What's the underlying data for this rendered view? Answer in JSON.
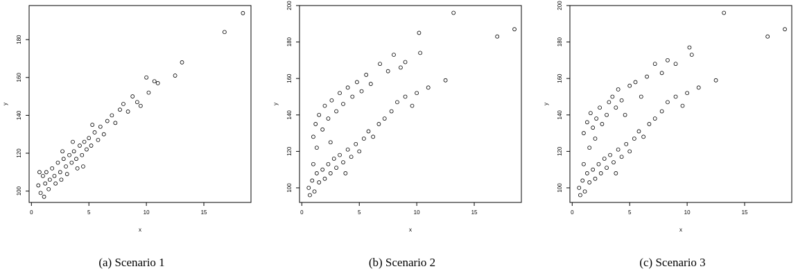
{
  "chart_data": [
    {
      "type": "scatter",
      "caption": "(a)  Scenario 1",
      "xlabel": "x",
      "ylabel": "y",
      "xlim": [
        -0.2,
        19.1
      ],
      "ylim": [
        94,
        198
      ],
      "xticks": [
        0,
        5,
        10,
        15
      ],
      "yticks": [
        100,
        120,
        140,
        160,
        180
      ],
      "x": [
        0.6,
        0.8,
        1.0,
        1.2,
        1.3,
        1.5,
        1.6,
        1.8,
        2.0,
        2.1,
        2.3,
        2.5,
        2.6,
        2.8,
        3.0,
        3.1,
        3.3,
        3.5,
        3.7,
        3.9,
        4.0,
        4.2,
        4.4,
        4.6,
        4.8,
        5.0,
        5.2,
        5.5,
        5.8,
        6.0,
        6.3,
        6.6,
        7.0,
        7.3,
        7.7,
        8.0,
        8.4,
        8.8,
        9.2,
        9.5,
        10.0,
        10.2,
        10.7,
        11.0,
        12.5,
        13.1,
        16.8,
        18.4,
        1.1,
        0.7,
        2.7,
        3.6,
        5.3,
        4.5
      ],
      "values": [
        103,
        99,
        108,
        104,
        110,
        101,
        106,
        112,
        108,
        104,
        115,
        110,
        106,
        117,
        113,
        109,
        119,
        115,
        121,
        117,
        112,
        124,
        119,
        126,
        122,
        128,
        124,
        131,
        127,
        134,
        130,
        137,
        140,
        136,
        143,
        146,
        142,
        150,
        147,
        145,
        160,
        152,
        158,
        157,
        161,
        168,
        184,
        194,
        97,
        110,
        121,
        126,
        135,
        113
      ]
    },
    {
      "type": "scatter",
      "caption": "(b)  Scenario 2",
      "xlabel": "x",
      "ylabel": "y",
      "xlim": [
        -0.2,
        19.1
      ],
      "ylim": [
        92,
        200
      ],
      "xticks": [
        0,
        5,
        10,
        15
      ],
      "yticks": [
        100,
        120,
        140,
        160,
        180,
        200
      ],
      "x": [
        0.6,
        0.9,
        1.1,
        1.3,
        1.5,
        1.8,
        2.0,
        2.3,
        2.5,
        2.8,
        3.0,
        3.3,
        3.6,
        4.0,
        4.3,
        4.7,
        5.0,
        5.4,
        5.8,
        6.2,
        6.7,
        7.2,
        7.8,
        8.3,
        9.0,
        9.6,
        10.0,
        11.0,
        12.5,
        0.7,
        1.0,
        3.8,
        1.0,
        1.2,
        1.5,
        1.8,
        2.0,
        2.3,
        2.6,
        3.0,
        3.3,
        3.6,
        4.0,
        4.4,
        4.8,
        5.2,
        5.6,
        6.0,
        6.8,
        7.5,
        8.0,
        8.6,
        9.0,
        10.2,
        10.3,
        13.2,
        17.0,
        18.5,
        1.3,
        2.5
      ],
      "values": [
        100,
        104,
        98,
        108,
        103,
        110,
        105,
        113,
        108,
        116,
        111,
        118,
        114,
        121,
        117,
        124,
        120,
        127,
        131,
        128,
        135,
        138,
        142,
        147,
        150,
        145,
        152,
        155,
        159,
        96,
        113,
        108,
        128,
        135,
        140,
        132,
        145,
        138,
        148,
        142,
        152,
        146,
        155,
        150,
        158,
        153,
        162,
        157,
        168,
        164,
        173,
        166,
        169,
        185,
        174,
        196,
        183,
        187,
        122,
        125
      ]
    },
    {
      "type": "scatter",
      "caption": "(c)  Scenario 3",
      "xlabel": "x",
      "ylabel": "y",
      "xlim": [
        -0.2,
        19.1
      ],
      "ylim": [
        92,
        200
      ],
      "xticks": [
        0,
        5,
        10,
        15
      ],
      "yticks": [
        100,
        120,
        140,
        160,
        180,
        200
      ],
      "x": [
        0.6,
        0.9,
        1.1,
        1.3,
        1.5,
        1.8,
        2.0,
        2.3,
        2.5,
        2.8,
        3.0,
        3.3,
        3.6,
        4.0,
        4.3,
        4.7,
        5.0,
        5.4,
        5.8,
        6.2,
        6.7,
        7.2,
        7.8,
        8.3,
        9.0,
        9.6,
        10.0,
        11.0,
        12.5,
        0.7,
        1.0,
        3.8,
        1.0,
        1.3,
        1.6,
        1.8,
        2.1,
        2.4,
        2.6,
        3.0,
        3.2,
        3.5,
        3.8,
        4.0,
        4.3,
        4.6,
        5.0,
        5.5,
        6.0,
        6.5,
        7.2,
        7.8,
        8.3,
        9.0,
        10.2,
        10.4,
        13.2,
        17.0,
        18.5,
        1.5,
        2.0
      ],
      "values": [
        100,
        104,
        98,
        108,
        103,
        110,
        105,
        113,
        108,
        116,
        111,
        118,
        114,
        121,
        117,
        124,
        120,
        127,
        131,
        128,
        135,
        138,
        142,
        147,
        150,
        145,
        152,
        155,
        159,
        96,
        113,
        108,
        130,
        136,
        141,
        133,
        138,
        144,
        135,
        140,
        147,
        150,
        144,
        154,
        148,
        140,
        156,
        158,
        150,
        161,
        168,
        163,
        170,
        168,
        177,
        173,
        196,
        183,
        187,
        122,
        127
      ]
    }
  ]
}
